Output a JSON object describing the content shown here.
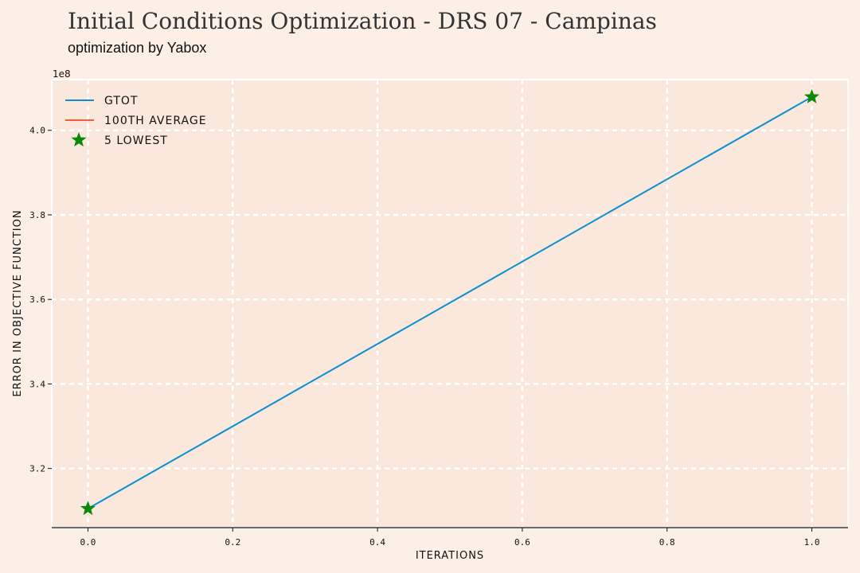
{
  "chart_data": {
    "type": "line",
    "title": "Initial Conditions Optimization - DRS 07 - Campinas",
    "subtitle": "optimization by Yabox",
    "xlabel": "ITERATIONS",
    "ylabel": "ERROR IN OBJECTIVE FUNCTION",
    "y_offset_label": "1e8",
    "xlim": [
      -0.05,
      1.05
    ],
    "ylim": [
      3.06,
      4.12
    ],
    "x_ticks": [
      0.0,
      0.2,
      0.4,
      0.6,
      0.8,
      1.0
    ],
    "x_tick_labels": [
      "0.0",
      "0.2",
      "0.4",
      "0.6",
      "0.8",
      "1.0"
    ],
    "y_ticks": [
      3.2,
      3.4,
      3.6,
      3.8,
      4.0
    ],
    "y_tick_labels": [
      "3.2",
      "3.4",
      "3.6",
      "3.8",
      "4.0"
    ],
    "grid": true,
    "legend_position": "top-left",
    "series": [
      {
        "name": "GTOT",
        "kind": "line",
        "color": "#0a8ed4",
        "x": [
          0.0,
          1.0
        ],
        "y": [
          3.105,
          4.079
        ]
      },
      {
        "name": "100TH AVERAGE",
        "kind": "line",
        "color": "#f0603c",
        "x": [],
        "y": []
      },
      {
        "name": "5 LOWEST",
        "kind": "scatter",
        "marker": "star",
        "color": "#0a8a0a",
        "x": [
          0.0,
          1.0
        ],
        "y": [
          3.105,
          4.079
        ]
      }
    ]
  }
}
